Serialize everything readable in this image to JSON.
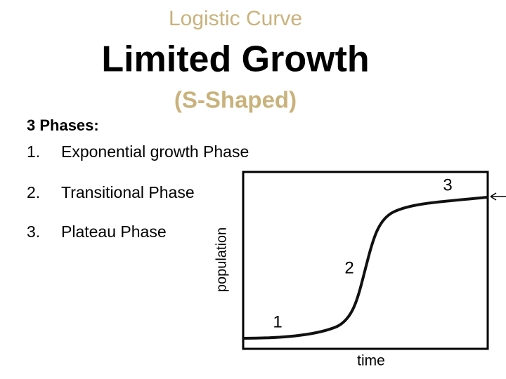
{
  "header": {
    "kicker": "Logistic Curve",
    "title": "Limited Growth",
    "subtitle": "(S-Shaped)"
  },
  "phases": {
    "heading": "3 Phases:",
    "items": [
      {
        "number": "1.",
        "text": "Exponential growth Phase"
      },
      {
        "number": "2.",
        "text": "Transitional Phase"
      },
      {
        "number": "3.",
        "text": "Plateau Phase"
      }
    ]
  },
  "diagram": {
    "y_label": "population",
    "x_label": "time",
    "markers": [
      "1",
      "2",
      "3"
    ]
  }
}
